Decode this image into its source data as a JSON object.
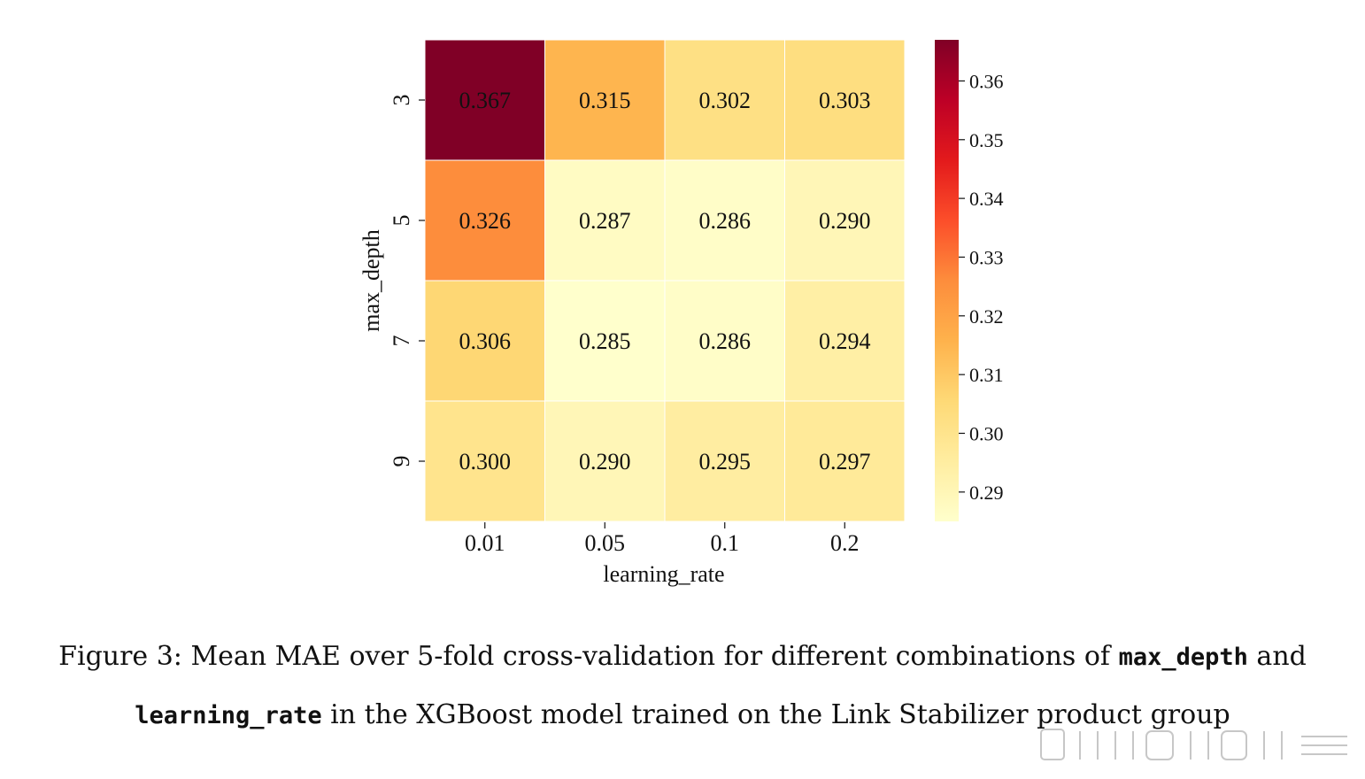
{
  "chart_data": {
    "type": "heatmap",
    "xlabel": "learning_rate",
    "ylabel": "max_depth",
    "x_categories": [
      "0.01",
      "0.05",
      "0.1",
      "0.2"
    ],
    "y_categories": [
      "3",
      "5",
      "7",
      "9"
    ],
    "values": [
      [
        0.367,
        0.315,
        0.302,
        0.303
      ],
      [
        0.326,
        0.287,
        0.286,
        0.29
      ],
      [
        0.306,
        0.285,
        0.286,
        0.294
      ],
      [
        0.3,
        0.29,
        0.295,
        0.297
      ]
    ],
    "value_labels": [
      [
        "0.367",
        "0.315",
        "0.302",
        "0.303"
      ],
      [
        "0.326",
        "0.287",
        "0.286",
        "0.290"
      ],
      [
        "0.306",
        "0.285",
        "0.286",
        "0.294"
      ],
      [
        "0.300",
        "0.290",
        "0.295",
        "0.297"
      ]
    ],
    "colormap": "YlOrRd",
    "colorbar": {
      "range": [
        0.285,
        0.367
      ],
      "ticks": [
        0.29,
        0.3,
        0.31,
        0.32,
        0.33,
        0.34,
        0.35,
        0.36
      ],
      "tick_labels": [
        "0.29",
        "0.30",
        "0.31",
        "0.32",
        "0.33",
        "0.34",
        "0.35",
        "0.36"
      ]
    }
  },
  "caption": {
    "line1_prefix": "Figure 3: Mean MAE over 5-fold cross-validation for different combinations of ",
    "line1_code": "max_depth",
    "line1_suffix": " and",
    "line2_code": "learning_rate",
    "line2_suffix": " in the XGBoost model trained on the Link Stabilizer product group"
  }
}
